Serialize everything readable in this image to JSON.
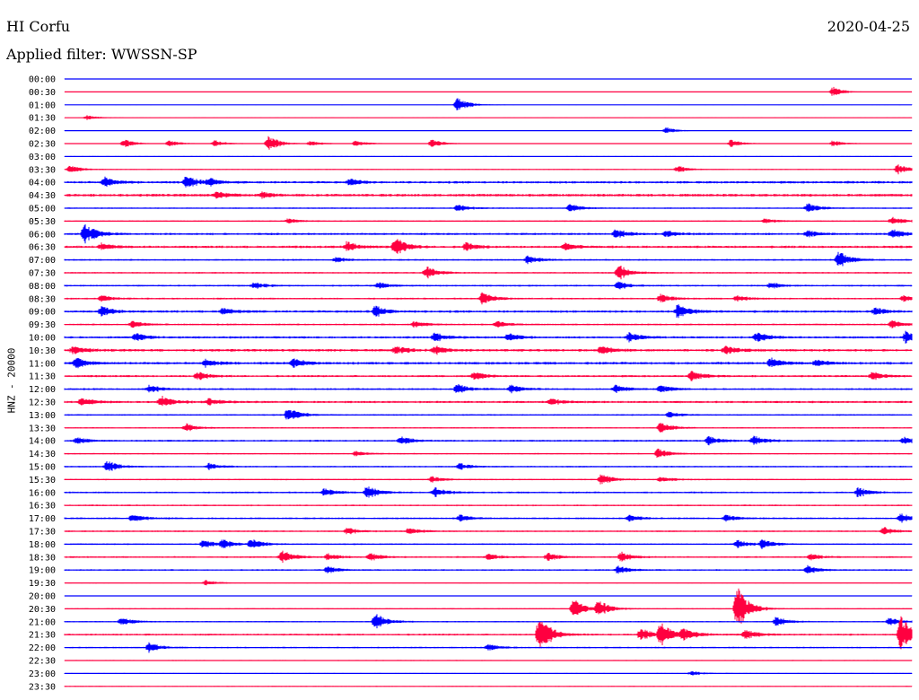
{
  "header": {
    "station": "HI Corfu",
    "date": "2020-04-25",
    "filter": "Applied filter: WWSSN-SP"
  },
  "chart_data": {
    "type": "line",
    "title": "HI Corfu",
    "subtitle": "Applied filter: WWSSN-SP",
    "ylabel": "HNZ - 20000",
    "xlabel": "",
    "grid": false,
    "legend": "none",
    "colors": {
      "even_row": "#0000ff",
      "odd_row": "#ff0040"
    },
    "x_range_minutes": [
      0,
      30
    ],
    "rows": [
      "00:00",
      "00:30",
      "01:00",
      "01:30",
      "02:00",
      "02:30",
      "03:00",
      "03:30",
      "04:00",
      "04:30",
      "05:00",
      "05:30",
      "06:00",
      "06:30",
      "07:00",
      "07:30",
      "08:00",
      "08:30",
      "09:00",
      "09:30",
      "10:00",
      "10:30",
      "11:00",
      "11:30",
      "12:00",
      "12:30",
      "13:00",
      "13:30",
      "14:00",
      "14:30",
      "15:00",
      "15:30",
      "16:00",
      "16:30",
      "17:00",
      "17:30",
      "18:00",
      "18:30",
      "19:00",
      "19:30",
      "20:00",
      "20:30",
      "21:00",
      "21:30",
      "22:00",
      "22:30",
      "23:00",
      "23:30"
    ],
    "noise_level": [
      0.2,
      0.2,
      0.3,
      0.3,
      0.3,
      0.4,
      0.5,
      0.6,
      1.4,
      1.6,
      0.8,
      0.8,
      1.3,
      1.4,
      1.0,
      0.9,
      1.0,
      1.0,
      1.4,
      1.0,
      1.3,
      1.5,
      1.5,
      1.2,
      1.1,
      1.3,
      0.9,
      0.8,
      1.1,
      0.8,
      0.9,
      0.8,
      1.0,
      0.9,
      1.0,
      0.9,
      0.9,
      1.0,
      0.9,
      0.6,
      0.5,
      0.7,
      0.8,
      1.1,
      0.9,
      0.6,
      0.5,
      0.5
    ],
    "events": [
      {
        "row": 1,
        "minute": 27.2,
        "amp": 6
      },
      {
        "row": 2,
        "minute": 13.9,
        "amp": 9
      },
      {
        "row": 3,
        "minute": 0.8,
        "amp": 3
      },
      {
        "row": 4,
        "minute": 21.3,
        "amp": 4
      },
      {
        "row": 5,
        "minute": 2.1,
        "amp": 5
      },
      {
        "row": 5,
        "minute": 3.7,
        "amp": 4
      },
      {
        "row": 5,
        "minute": 5.3,
        "amp": 4
      },
      {
        "row": 5,
        "minute": 7.2,
        "amp": 10
      },
      {
        "row": 5,
        "minute": 8.7,
        "amp": 3
      },
      {
        "row": 5,
        "minute": 10.3,
        "amp": 4
      },
      {
        "row": 5,
        "minute": 13.0,
        "amp": 5
      },
      {
        "row": 5,
        "minute": 23.6,
        "amp": 5
      },
      {
        "row": 5,
        "minute": 27.2,
        "amp": 4
      },
      {
        "row": 7,
        "minute": 0.2,
        "amp": 5
      },
      {
        "row": 7,
        "minute": 21.7,
        "amp": 4
      },
      {
        "row": 7,
        "minute": 29.5,
        "amp": 6
      },
      {
        "row": 8,
        "minute": 1.4,
        "amp": 6
      },
      {
        "row": 8,
        "minute": 4.3,
        "amp": 8
      },
      {
        "row": 8,
        "minute": 5.1,
        "amp": 4
      },
      {
        "row": 8,
        "minute": 10.1,
        "amp": 4
      },
      {
        "row": 9,
        "minute": 5.4,
        "amp": 4
      },
      {
        "row": 9,
        "minute": 7.0,
        "amp": 3
      },
      {
        "row": 10,
        "minute": 13.9,
        "amp": 5
      },
      {
        "row": 10,
        "minute": 17.9,
        "amp": 5
      },
      {
        "row": 10,
        "minute": 26.3,
        "amp": 6
      },
      {
        "row": 11,
        "minute": 7.9,
        "amp": 3
      },
      {
        "row": 11,
        "minute": 24.8,
        "amp": 3
      },
      {
        "row": 11,
        "minute": 29.3,
        "amp": 5
      },
      {
        "row": 12,
        "minute": 0.7,
        "amp": 12
      },
      {
        "row": 12,
        "minute": 19.5,
        "amp": 6
      },
      {
        "row": 12,
        "minute": 21.3,
        "amp": 4
      },
      {
        "row": 12,
        "minute": 26.3,
        "amp": 4
      },
      {
        "row": 12,
        "minute": 29.3,
        "amp": 6
      },
      {
        "row": 13,
        "minute": 1.3,
        "amp": 4
      },
      {
        "row": 13,
        "minute": 10.0,
        "amp": 6
      },
      {
        "row": 13,
        "minute": 11.7,
        "amp": 11
      },
      {
        "row": 13,
        "minute": 14.2,
        "amp": 5
      },
      {
        "row": 13,
        "minute": 17.7,
        "amp": 4
      },
      {
        "row": 14,
        "minute": 9.6,
        "amp": 3
      },
      {
        "row": 14,
        "minute": 16.4,
        "amp": 5
      },
      {
        "row": 14,
        "minute": 27.4,
        "amp": 11
      },
      {
        "row": 15,
        "minute": 12.8,
        "amp": 8
      },
      {
        "row": 15,
        "minute": 19.6,
        "amp": 10
      },
      {
        "row": 16,
        "minute": 6.7,
        "amp": 4
      },
      {
        "row": 16,
        "minute": 11.1,
        "amp": 4
      },
      {
        "row": 16,
        "minute": 19.6,
        "amp": 5
      },
      {
        "row": 16,
        "minute": 25.0,
        "amp": 4
      },
      {
        "row": 17,
        "minute": 1.3,
        "amp": 4
      },
      {
        "row": 17,
        "minute": 14.8,
        "amp": 8
      },
      {
        "row": 17,
        "minute": 21.1,
        "amp": 5
      },
      {
        "row": 17,
        "minute": 23.8,
        "amp": 4
      },
      {
        "row": 17,
        "minute": 29.7,
        "amp": 4
      },
      {
        "row": 18,
        "minute": 1.3,
        "amp": 6
      },
      {
        "row": 18,
        "minute": 5.6,
        "amp": 4
      },
      {
        "row": 18,
        "minute": 11.0,
        "amp": 7
      },
      {
        "row": 18,
        "minute": 21.7,
        "amp": 8
      },
      {
        "row": 18,
        "minute": 28.7,
        "amp": 4
      },
      {
        "row": 19,
        "minute": 2.4,
        "amp": 4
      },
      {
        "row": 19,
        "minute": 12.4,
        "amp": 4
      },
      {
        "row": 19,
        "minute": 15.3,
        "amp": 4
      },
      {
        "row": 19,
        "minute": 29.3,
        "amp": 5
      },
      {
        "row": 20,
        "minute": 2.5,
        "amp": 5
      },
      {
        "row": 20,
        "minute": 13.1,
        "amp": 5
      },
      {
        "row": 20,
        "minute": 15.7,
        "amp": 5
      },
      {
        "row": 20,
        "minute": 20.0,
        "amp": 6
      },
      {
        "row": 20,
        "minute": 24.5,
        "amp": 6
      },
      {
        "row": 20,
        "minute": 29.8,
        "amp": 8
      },
      {
        "row": 21,
        "minute": 0.3,
        "amp": 5
      },
      {
        "row": 21,
        "minute": 11.7,
        "amp": 5
      },
      {
        "row": 21,
        "minute": 13.1,
        "amp": 5
      },
      {
        "row": 21,
        "minute": 19.0,
        "amp": 5
      },
      {
        "row": 21,
        "minute": 23.4,
        "amp": 5
      },
      {
        "row": 22,
        "minute": 0.4,
        "amp": 6
      },
      {
        "row": 22,
        "minute": 5.0,
        "amp": 4
      },
      {
        "row": 22,
        "minute": 8.1,
        "amp": 6
      },
      {
        "row": 22,
        "minute": 25.0,
        "amp": 6
      },
      {
        "row": 22,
        "minute": 26.6,
        "amp": 4
      },
      {
        "row": 23,
        "minute": 4.7,
        "amp": 5
      },
      {
        "row": 23,
        "minute": 14.5,
        "amp": 5
      },
      {
        "row": 23,
        "minute": 22.2,
        "amp": 6
      },
      {
        "row": 23,
        "minute": 28.6,
        "amp": 5
      },
      {
        "row": 24,
        "minute": 3.0,
        "amp": 5
      },
      {
        "row": 24,
        "minute": 13.9,
        "amp": 6
      },
      {
        "row": 24,
        "minute": 15.8,
        "amp": 5
      },
      {
        "row": 24,
        "minute": 19.5,
        "amp": 5
      },
      {
        "row": 24,
        "minute": 21.1,
        "amp": 5
      },
      {
        "row": 25,
        "minute": 0.6,
        "amp": 5
      },
      {
        "row": 25,
        "minute": 3.4,
        "amp": 7
      },
      {
        "row": 25,
        "minute": 5.1,
        "amp": 4
      },
      {
        "row": 25,
        "minute": 17.2,
        "amp": 4
      },
      {
        "row": 26,
        "minute": 7.9,
        "amp": 9
      },
      {
        "row": 26,
        "minute": 21.4,
        "amp": 3
      },
      {
        "row": 27,
        "minute": 4.3,
        "amp": 5
      },
      {
        "row": 27,
        "minute": 21.1,
        "amp": 7
      },
      {
        "row": 28,
        "minute": 0.4,
        "amp": 4
      },
      {
        "row": 28,
        "minute": 11.9,
        "amp": 5
      },
      {
        "row": 28,
        "minute": 22.8,
        "amp": 5
      },
      {
        "row": 28,
        "minute": 24.4,
        "amp": 6
      },
      {
        "row": 28,
        "minute": 29.7,
        "amp": 4
      },
      {
        "row": 29,
        "minute": 10.3,
        "amp": 3
      },
      {
        "row": 29,
        "minute": 21.0,
        "amp": 6
      },
      {
        "row": 30,
        "minute": 1.5,
        "amp": 7
      },
      {
        "row": 30,
        "minute": 5.1,
        "amp": 4
      },
      {
        "row": 30,
        "minute": 14.0,
        "amp": 4
      },
      {
        "row": 31,
        "minute": 13.0,
        "amp": 4
      },
      {
        "row": 31,
        "minute": 19.0,
        "amp": 7
      },
      {
        "row": 31,
        "minute": 21.1,
        "amp": 4
      },
      {
        "row": 32,
        "minute": 9.2,
        "amp": 5
      },
      {
        "row": 32,
        "minute": 10.7,
        "amp": 8
      },
      {
        "row": 32,
        "minute": 13.1,
        "amp": 6
      },
      {
        "row": 32,
        "minute": 28.1,
        "amp": 6
      },
      {
        "row": 34,
        "minute": 2.4,
        "amp": 5
      },
      {
        "row": 34,
        "minute": 14.0,
        "amp": 4
      },
      {
        "row": 34,
        "minute": 20.0,
        "amp": 4
      },
      {
        "row": 34,
        "minute": 23.4,
        "amp": 4
      },
      {
        "row": 34,
        "minute": 29.6,
        "amp": 6
      },
      {
        "row": 35,
        "minute": 10.0,
        "amp": 4
      },
      {
        "row": 35,
        "minute": 12.2,
        "amp": 4
      },
      {
        "row": 35,
        "minute": 29.0,
        "amp": 5
      },
      {
        "row": 36,
        "minute": 4.9,
        "amp": 5
      },
      {
        "row": 36,
        "minute": 5.6,
        "amp": 5
      },
      {
        "row": 36,
        "minute": 6.6,
        "amp": 6
      },
      {
        "row": 36,
        "minute": 23.8,
        "amp": 5
      },
      {
        "row": 36,
        "minute": 24.7,
        "amp": 5
      },
      {
        "row": 37,
        "minute": 7.7,
        "amp": 8
      },
      {
        "row": 37,
        "minute": 9.3,
        "amp": 4
      },
      {
        "row": 37,
        "minute": 10.8,
        "amp": 5
      },
      {
        "row": 37,
        "minute": 15.0,
        "amp": 4
      },
      {
        "row": 37,
        "minute": 17.1,
        "amp": 5
      },
      {
        "row": 37,
        "minute": 19.7,
        "amp": 6
      },
      {
        "row": 37,
        "minute": 26.4,
        "amp": 4
      },
      {
        "row": 38,
        "minute": 9.3,
        "amp": 5
      },
      {
        "row": 38,
        "minute": 19.6,
        "amp": 5
      },
      {
        "row": 38,
        "minute": 26.3,
        "amp": 5
      },
      {
        "row": 39,
        "minute": 5.0,
        "amp": 3
      },
      {
        "row": 41,
        "minute": 18.0,
        "amp": 12
      },
      {
        "row": 41,
        "minute": 18.9,
        "amp": 10
      },
      {
        "row": 41,
        "minute": 23.8,
        "amp": 28
      },
      {
        "row": 42,
        "minute": 2.0,
        "amp": 5
      },
      {
        "row": 42,
        "minute": 11.0,
        "amp": 10
      },
      {
        "row": 42,
        "minute": 25.2,
        "amp": 6
      },
      {
        "row": 42,
        "minute": 29.2,
        "amp": 5
      },
      {
        "row": 43,
        "minute": 16.8,
        "amp": 24
      },
      {
        "row": 43,
        "minute": 20.4,
        "amp": 8
      },
      {
        "row": 43,
        "minute": 21.1,
        "amp": 14
      },
      {
        "row": 43,
        "minute": 21.9,
        "amp": 7
      },
      {
        "row": 43,
        "minute": 24.1,
        "amp": 6
      },
      {
        "row": 43,
        "minute": 29.6,
        "amp": 22
      },
      {
        "row": 44,
        "minute": 3.0,
        "amp": 6
      },
      {
        "row": 44,
        "minute": 15.0,
        "amp": 4
      },
      {
        "row": 46,
        "minute": 22.2,
        "amp": 3
      }
    ]
  }
}
